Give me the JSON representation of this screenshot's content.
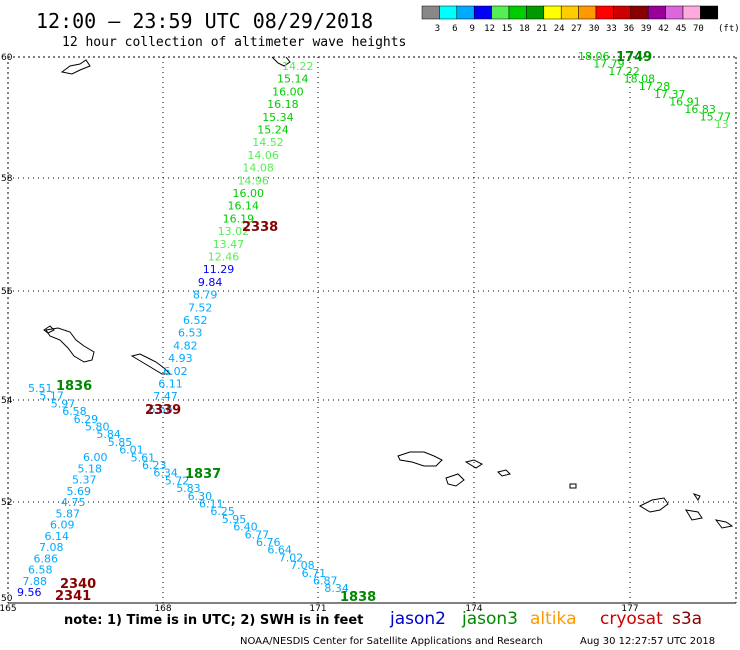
{
  "header": {
    "title": "12:00 – 23:59 UTC 08/29/2018",
    "subtitle": "12 hour collection of altimeter wave heights"
  },
  "legend": {
    "unit": "(ft)",
    "bins": [
      {
        "label": "3",
        "color": "#888888"
      },
      {
        "label": "6",
        "color": "#00ffff"
      },
      {
        "label": "9",
        "color": "#00aaff"
      },
      {
        "label": "12",
        "color": "#0000ff"
      },
      {
        "label": "15",
        "color": "#55ee55"
      },
      {
        "label": "18",
        "color": "#00cc00"
      },
      {
        "label": "21",
        "color": "#009900"
      },
      {
        "label": "24",
        "color": "#ffff00"
      },
      {
        "label": "27",
        "color": "#ffcc00"
      },
      {
        "label": "30",
        "color": "#ff9900"
      },
      {
        "label": "33",
        "color": "#ff0000"
      },
      {
        "label": "36",
        "color": "#cc0000"
      },
      {
        "label": "39",
        "color": "#880000"
      },
      {
        "label": "42",
        "color": "#990099"
      },
      {
        "label": "45",
        "color": "#dd66dd"
      },
      {
        "label": "70",
        "color": "#ffaadd"
      },
      {
        "label": "",
        "color": "#000000"
      }
    ]
  },
  "map": {
    "lat_labels": [
      "60",
      "58",
      "56",
      "54",
      "52",
      "50"
    ],
    "lon_labels": [
      "165",
      "168",
      "171",
      "174",
      "177"
    ]
  },
  "footer": {
    "note": "note: 1) Time is in UTC; 2) SWH is in feet",
    "satellites": [
      {
        "name": "jason2",
        "color": "#0000cc"
      },
      {
        "name": "jason3",
        "color": "#008800"
      },
      {
        "name": "altika",
        "color": "#ff9900"
      },
      {
        "name": "cryosat",
        "color": "#cc0000"
      },
      {
        "name": "s3a",
        "color": "#880000"
      }
    ],
    "credit": "NOAA/NESDIS Center for Satellite Applications and Research",
    "timestamp": "Aug 30 12:27:57 UTC 2018"
  },
  "tracks": {
    "pass_labels": [
      {
        "text": "1749",
        "color": "#008800"
      },
      {
        "text": "2338",
        "color": "#880000"
      },
      {
        "text": "1836",
        "color": "#008800"
      },
      {
        "text": "2339",
        "color": "#880000"
      },
      {
        "text": "1837",
        "color": "#008800"
      },
      {
        "text": "1838",
        "color": "#008800"
      },
      {
        "text": "2340",
        "color": "#880000"
      },
      {
        "text": "2341",
        "color": "#880000"
      }
    ],
    "track_a": [
      {
        "v": "14.22",
        "c": "#55ee55"
      },
      {
        "v": "15.14",
        "c": "#00cc00"
      },
      {
        "v": "16.00",
        "c": "#00cc00"
      },
      {
        "v": "16.18",
        "c": "#00cc00"
      },
      {
        "v": "15.34",
        "c": "#00cc00"
      },
      {
        "v": "15.24",
        "c": "#00cc00"
      },
      {
        "v": "14.52",
        "c": "#55ee55"
      },
      {
        "v": "14.06",
        "c": "#55ee55"
      },
      {
        "v": "14.08",
        "c": "#55ee55"
      },
      {
        "v": "14.96",
        "c": "#55ee55"
      },
      {
        "v": "16.00",
        "c": "#00cc00"
      },
      {
        "v": "16.14",
        "c": "#00cc00"
      },
      {
        "v": "16.19",
        "c": "#00cc00"
      },
      {
        "v": "13.02",
        "c": "#55ee55"
      },
      {
        "v": "13.47",
        "c": "#55ee55"
      },
      {
        "v": "12.46",
        "c": "#55ee55"
      },
      {
        "v": "11.29",
        "c": "#0000ff"
      },
      {
        "v": "9.84",
        "c": "#0000ff"
      },
      {
        "v": "8.79",
        "c": "#00aaff"
      },
      {
        "v": "7.52",
        "c": "#00aaff"
      },
      {
        "v": "6.52",
        "c": "#00aaff"
      },
      {
        "v": "6.53",
        "c": "#00aaff"
      },
      {
        "v": "4.82",
        "c": "#00aaff"
      },
      {
        "v": "4.93",
        "c": "#00aaff"
      },
      {
        "v": "6.02",
        "c": "#00aaff"
      },
      {
        "v": "6.11",
        "c": "#00aaff"
      },
      {
        "v": "7.47",
        "c": "#00aaff"
      },
      {
        "v": "6.56",
        "c": "#00aaff"
      }
    ],
    "track_b": [
      {
        "v": "18.06",
        "c": "#00cc00"
      },
      {
        "v": "17.79",
        "c": "#00cc00"
      },
      {
        "v": "17.22",
        "c": "#00cc00"
      },
      {
        "v": "18.08",
        "c": "#00cc00"
      },
      {
        "v": "17.28",
        "c": "#00cc00"
      },
      {
        "v": "17.37",
        "c": "#00cc00"
      },
      {
        "v": "16.91",
        "c": "#00cc00"
      },
      {
        "v": "16.83",
        "c": "#00cc00"
      },
      {
        "v": "15.77",
        "c": "#00cc00"
      },
      {
        "v": "13",
        "c": "#55ee55"
      }
    ],
    "track_c": [
      {
        "v": "5.51",
        "c": "#00aaff"
      },
      {
        "v": "5.17",
        "c": "#00aaff"
      },
      {
        "v": "5.97",
        "c": "#00aaff"
      },
      {
        "v": "6.58",
        "c": "#00aaff"
      },
      {
        "v": "6.29",
        "c": "#00aaff"
      },
      {
        "v": "5.80",
        "c": "#00aaff"
      },
      {
        "v": "5.84",
        "c": "#00aaff"
      },
      {
        "v": "5.85",
        "c": "#00aaff"
      },
      {
        "v": "6.01",
        "c": "#00aaff"
      },
      {
        "v": "5.61",
        "c": "#00aaff"
      },
      {
        "v": "6.23",
        "c": "#00aaff"
      },
      {
        "v": "6.34",
        "c": "#00aaff"
      },
      {
        "v": "5.72",
        "c": "#00aaff"
      },
      {
        "v": "5.83",
        "c": "#00aaff"
      },
      {
        "v": "6.30",
        "c": "#00aaff"
      },
      {
        "v": "6.11",
        "c": "#00aaff"
      },
      {
        "v": "6.25",
        "c": "#00aaff"
      },
      {
        "v": "5.95",
        "c": "#00aaff"
      },
      {
        "v": "6.40",
        "c": "#00aaff"
      },
      {
        "v": "6.77",
        "c": "#00aaff"
      },
      {
        "v": "6.76",
        "c": "#00aaff"
      },
      {
        "v": "6.64",
        "c": "#00aaff"
      },
      {
        "v": "7.02",
        "c": "#00aaff"
      },
      {
        "v": "7.08",
        "c": "#00aaff"
      },
      {
        "v": "6.71",
        "c": "#00aaff"
      },
      {
        "v": "6.87",
        "c": "#00aaff"
      },
      {
        "v": "8.34",
        "c": "#00aaff"
      }
    ],
    "track_d": [
      {
        "v": "6.00",
        "c": "#00aaff"
      },
      {
        "v": "5.18",
        "c": "#00aaff"
      },
      {
        "v": "5.37",
        "c": "#00aaff"
      },
      {
        "v": "5.69",
        "c": "#00aaff"
      },
      {
        "v": "4.75",
        "c": "#00aaff"
      },
      {
        "v": "5.87",
        "c": "#00aaff"
      },
      {
        "v": "6.09",
        "c": "#00aaff"
      },
      {
        "v": "6.14",
        "c": "#00aaff"
      },
      {
        "v": "7.08",
        "c": "#00aaff"
      },
      {
        "v": "6.86",
        "c": "#00aaff"
      },
      {
        "v": "6.58",
        "c": "#00aaff"
      },
      {
        "v": "7.88",
        "c": "#00aaff"
      },
      {
        "v": "9.56",
        "c": "#0000ff"
      }
    ]
  }
}
